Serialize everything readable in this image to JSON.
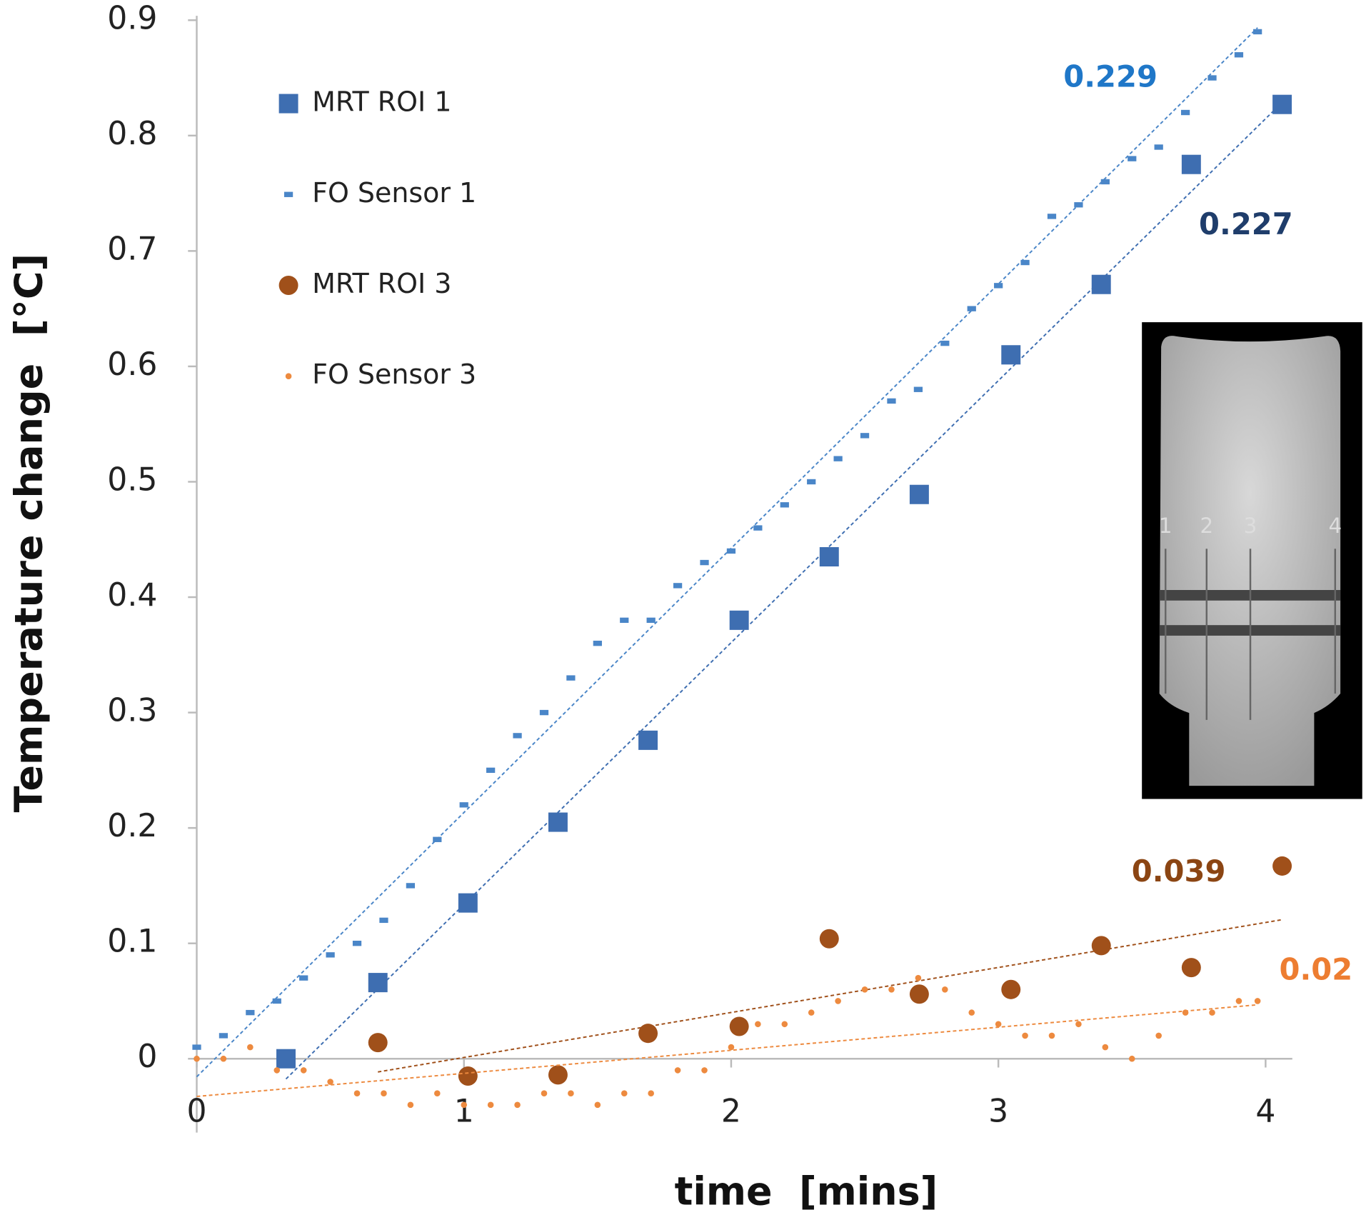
{
  "chart_data": {
    "type": "scatter",
    "x_label": "time  [mins]",
    "y_label": "Temperature change  [°C]",
    "xlim": [
      0,
      4.1
    ],
    "ylim": [
      -0.064,
      0.9
    ],
    "xticks": [
      0,
      1,
      2,
      3,
      4
    ],
    "yticks": [
      0,
      0.1,
      0.2,
      0.3,
      0.4,
      0.5,
      0.6,
      0.7,
      0.8,
      0.9
    ],
    "legend": "upper left",
    "inset_labels": [
      "1",
      "2",
      "3",
      "4"
    ],
    "series": [
      {
        "name": "MRT ROI 1",
        "marker": "square",
        "color": "#3e6eb1",
        "slope": 0.227,
        "label_color": "#1f3d6b",
        "x": [
          0.334,
          0.678,
          1.015,
          1.352,
          1.689,
          2.03,
          2.367,
          2.704,
          3.047,
          3.385,
          3.722,
          4.062
        ],
        "values": [
          0,
          0.066,
          0.135,
          0.205,
          0.276,
          0.38,
          0.435,
          0.489,
          0.61,
          0.671,
          0.775,
          0.827
        ]
      },
      {
        "name": "FO Sensor 1",
        "marker": "dash",
        "color": "#4a86c8",
        "slope": 0.229,
        "label_color": "#1f77c8",
        "x": [
          0,
          0.1,
          0.2,
          0.3,
          0.4,
          0.5,
          0.6,
          0.7,
          0.8,
          0.9,
          1.0,
          1.1,
          1.2,
          1.3,
          1.4,
          1.5,
          1.6,
          1.7,
          1.8,
          1.9,
          2.0,
          2.1,
          2.2,
          2.3,
          2.4,
          2.5,
          2.6,
          2.7,
          2.8,
          2.9,
          3.0,
          3.1,
          3.2,
          3.3,
          3.4,
          3.5,
          3.6,
          3.7,
          3.8,
          3.9,
          3.97
        ],
        "values": [
          0.01,
          0.02,
          0.04,
          0.05,
          0.07,
          0.09,
          0.1,
          0.12,
          0.15,
          0.19,
          0.22,
          0.25,
          0.28,
          0.3,
          0.33,
          0.36,
          0.38,
          0.38,
          0.41,
          0.43,
          0.44,
          0.46,
          0.48,
          0.5,
          0.52,
          0.54,
          0.57,
          0.58,
          0.62,
          0.65,
          0.67,
          0.69,
          0.73,
          0.74,
          0.76,
          0.78,
          0.79,
          0.82,
          0.85,
          0.87,
          0.89
        ]
      },
      {
        "name": "MRT ROI 3",
        "marker": "circle",
        "color": "#a0501a",
        "slope": 0.039,
        "label_color": "#8b4513",
        "x": [
          0.678,
          1.015,
          1.352,
          1.689,
          2.03,
          2.367,
          2.704,
          3.047,
          3.385,
          3.722,
          4.062
        ],
        "values": [
          0.014,
          -0.015,
          -0.014,
          0.022,
          0.028,
          0.104,
          0.056,
          0.06,
          0.098,
          0.079,
          0.167
        ]
      },
      {
        "name": "FO Sensor 3",
        "marker": "dot",
        "color": "#ed8a3f",
        "slope": 0.02,
        "label_color": "#ed7d31",
        "x": [
          0,
          0.1,
          0.2,
          0.3,
          0.4,
          0.5,
          0.6,
          0.7,
          0.8,
          0.9,
          1.0,
          1.1,
          1.2,
          1.3,
          1.4,
          1.5,
          1.6,
          1.7,
          1.8,
          1.9,
          2.0,
          2.1,
          2.2,
          2.3,
          2.4,
          2.5,
          2.6,
          2.7,
          2.8,
          2.9,
          3.0,
          3.1,
          3.2,
          3.3,
          3.4,
          3.5,
          3.6,
          3.7,
          3.8,
          3.9,
          3.97
        ],
        "values": [
          0,
          0,
          0.01,
          -0.01,
          -0.01,
          -0.02,
          -0.03,
          -0.03,
          -0.04,
          -0.03,
          -0.04,
          -0.04,
          -0.04,
          -0.03,
          -0.03,
          -0.04,
          -0.03,
          -0.03,
          -0.01,
          -0.01,
          0.01,
          0.03,
          0.03,
          0.04,
          0.05,
          0.06,
          0.06,
          0.07,
          0.06,
          0.04,
          0.03,
          0.02,
          0.02,
          0.03,
          0.01,
          0,
          0.02,
          0.04,
          0.04,
          0.05,
          0.05
        ]
      }
    ]
  }
}
